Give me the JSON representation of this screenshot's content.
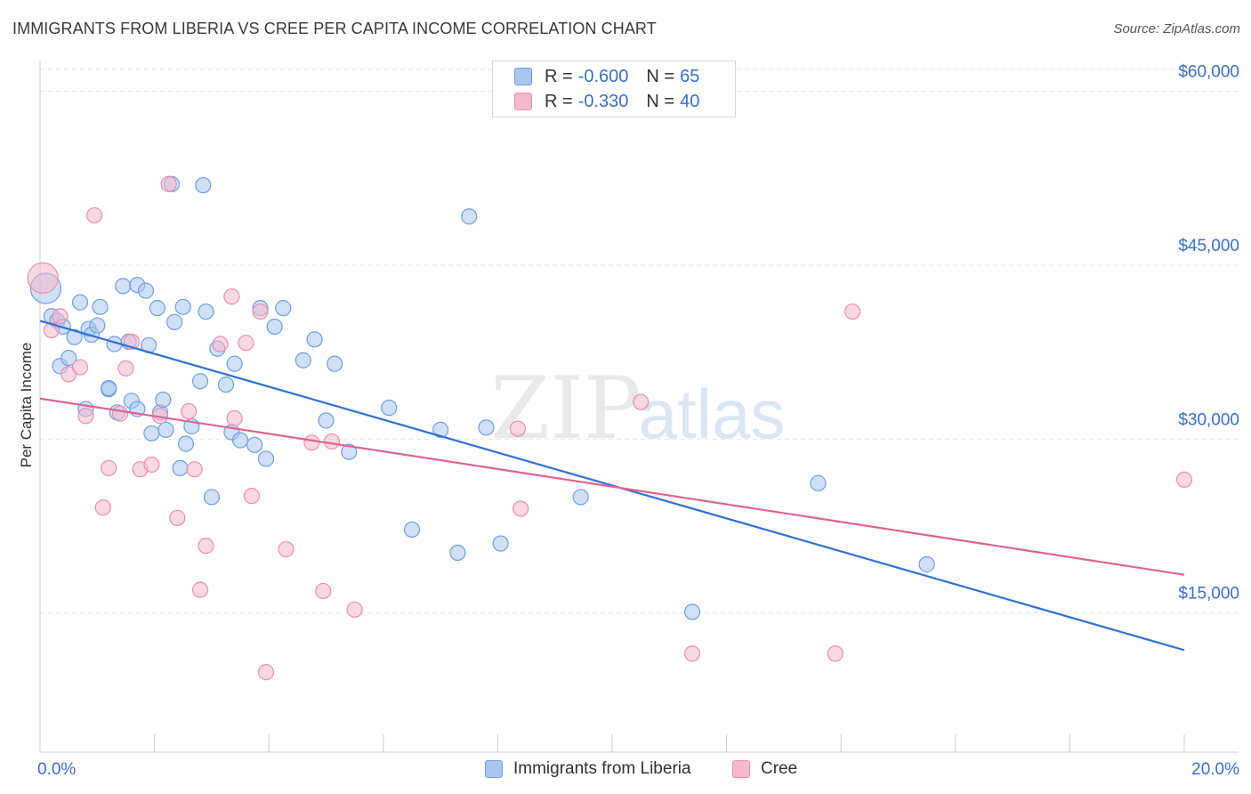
{
  "title": "IMMIGRANTS FROM LIBERIA VS CREE PER CAPITA INCOME CORRELATION CHART",
  "source": "Source: ZipAtlas.com",
  "watermark": {
    "zip": "ZIP",
    "atlas": "atlas"
  },
  "legend": {
    "rows": [
      {
        "r_label": "R =",
        "r_value": "-0.600",
        "n_label": "N =",
        "n_value": "65",
        "color": "#a9c6ef"
      },
      {
        "r_label": "R =",
        "r_value": "-0.330",
        "n_label": "N =",
        "n_value": "40",
        "color": "#f6b8cb"
      }
    ]
  },
  "chart_data": {
    "type": "scatter",
    "title": "IMMIGRANTS FROM LIBERIA VS CREE PER CAPITA INCOME CORRELATION CHART",
    "xlabel": "",
    "ylabel": "Per Capita Income",
    "xlim": [
      0,
      20
    ],
    "ylim": [
      3000,
      62500
    ],
    "x_tick_labels": [
      "0.0%",
      "20.0%"
    ],
    "y_ticks": [
      15000,
      30000,
      45000,
      60000
    ],
    "y_tick_labels": [
      "$15,000",
      "$30,000",
      "$45,000",
      "$60,000"
    ],
    "grid": true,
    "legend_position": "top-center",
    "series": [
      {
        "name": "Immigrants from Liberia",
        "color": "#a9c6ef",
        "edge": "#6f9fe0",
        "line_color": "#2f72d4",
        "trend": {
          "x": [
            0,
            20
          ],
          "y": [
            40200,
            11800
          ]
        },
        "points": [
          [
            0.1,
            43000
          ],
          [
            0.2,
            40600
          ],
          [
            0.3,
            40200
          ],
          [
            0.35,
            36300
          ],
          [
            0.4,
            39700
          ],
          [
            0.5,
            37000
          ],
          [
            0.6,
            38800
          ],
          [
            0.7,
            41800
          ],
          [
            0.8,
            32600
          ],
          [
            0.85,
            39500
          ],
          [
            0.9,
            39000
          ],
          [
            1.0,
            39800
          ],
          [
            1.05,
            41400
          ],
          [
            1.2,
            34300
          ],
          [
            1.3,
            38200
          ],
          [
            1.35,
            32300
          ],
          [
            1.45,
            43200
          ],
          [
            1.55,
            38400
          ],
          [
            1.6,
            33300
          ],
          [
            1.7,
            43300
          ],
          [
            1.85,
            42800
          ],
          [
            1.9,
            38100
          ],
          [
            1.95,
            30500
          ],
          [
            2.05,
            41300
          ],
          [
            2.1,
            32300
          ],
          [
            2.15,
            33400
          ],
          [
            2.35,
            40100
          ],
          [
            2.45,
            27500
          ],
          [
            2.5,
            41400
          ],
          [
            2.55,
            29600
          ],
          [
            2.65,
            31100
          ],
          [
            2.8,
            35000
          ],
          [
            2.9,
            41000
          ],
          [
            3.0,
            25000
          ],
          [
            3.1,
            37800
          ],
          [
            3.25,
            34700
          ],
          [
            3.35,
            30600
          ],
          [
            3.4,
            36500
          ],
          [
            3.5,
            29900
          ],
          [
            3.75,
            29500
          ],
          [
            3.85,
            41300
          ],
          [
            3.95,
            28300
          ],
          [
            4.1,
            39700
          ],
          [
            4.25,
            41300
          ],
          [
            4.6,
            36800
          ],
          [
            4.8,
            38600
          ],
          [
            5.0,
            31600
          ],
          [
            5.15,
            36500
          ],
          [
            5.4,
            28900
          ],
          [
            6.1,
            32700
          ],
          [
            6.5,
            22200
          ],
          [
            7.0,
            30800
          ],
          [
            7.3,
            20200
          ],
          [
            7.5,
            49200
          ],
          [
            7.8,
            31000
          ],
          [
            8.05,
            21000
          ],
          [
            9.45,
            25000
          ],
          [
            11.4,
            15100
          ],
          [
            13.6,
            26200
          ],
          [
            15.5,
            19200
          ],
          [
            2.3,
            52000
          ],
          [
            2.85,
            51900
          ],
          [
            1.2,
            34400
          ],
          [
            1.7,
            32600
          ],
          [
            2.2,
            30800
          ]
        ]
      },
      {
        "name": "Cree",
        "color": "#f6b8cb",
        "edge": "#eb8fae",
        "line_color": "#e0648f",
        "trend": {
          "x": [
            0,
            20
          ],
          "y": [
            33500,
            18300
          ]
        },
        "points": [
          [
            0.05,
            43900
          ],
          [
            0.2,
            39400
          ],
          [
            0.35,
            40600
          ],
          [
            0.5,
            35600
          ],
          [
            0.7,
            36200
          ],
          [
            0.8,
            32000
          ],
          [
            0.95,
            49300
          ],
          [
            1.1,
            24100
          ],
          [
            1.2,
            27500
          ],
          [
            1.4,
            32200
          ],
          [
            1.5,
            36100
          ],
          [
            1.6,
            38400
          ],
          [
            1.75,
            27400
          ],
          [
            1.95,
            27800
          ],
          [
            2.1,
            32000
          ],
          [
            2.25,
            52000
          ],
          [
            2.4,
            23200
          ],
          [
            2.6,
            32400
          ],
          [
            2.7,
            27400
          ],
          [
            2.8,
            17000
          ],
          [
            2.9,
            20800
          ],
          [
            3.15,
            38200
          ],
          [
            3.35,
            42300
          ],
          [
            3.4,
            31800
          ],
          [
            3.6,
            38300
          ],
          [
            3.7,
            25100
          ],
          [
            3.85,
            41000
          ],
          [
            3.95,
            9900
          ],
          [
            4.3,
            20500
          ],
          [
            4.75,
            29700
          ],
          [
            4.95,
            16900
          ],
          [
            5.1,
            29800
          ],
          [
            5.5,
            15300
          ],
          [
            8.35,
            30900
          ],
          [
            8.4,
            24000
          ],
          [
            10.5,
            33200
          ],
          [
            11.4,
            11500
          ],
          [
            13.9,
            11500
          ],
          [
            14.2,
            41000
          ],
          [
            20.0,
            26500
          ]
        ]
      }
    ]
  }
}
